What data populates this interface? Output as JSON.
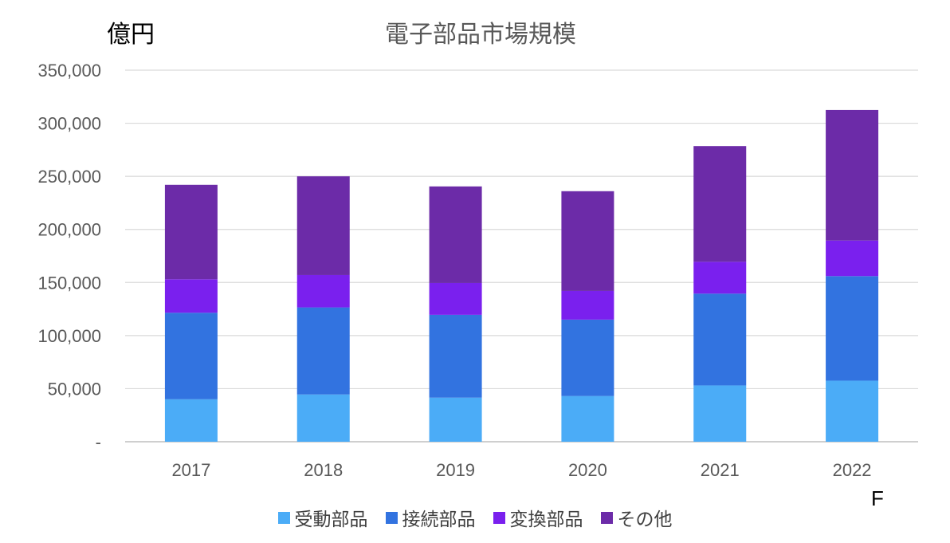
{
  "unit_label": "億円",
  "forecast_mark": "F",
  "chart_data": {
    "type": "bar",
    "stacked": true,
    "title": "電子部品市場規模",
    "xlabel": "",
    "ylabel": "億円",
    "ylim": [
      0,
      350000
    ],
    "yticks": [
      0,
      50000,
      100000,
      150000,
      200000,
      250000,
      300000,
      350000
    ],
    "ytick_labels": [
      "-",
      "50,000",
      "100,000",
      "150,000",
      "200,000",
      "250,000",
      "300,000",
      "350,000"
    ],
    "categories": [
      "2017",
      "2018",
      "2019",
      "2020",
      "2021",
      "2022"
    ],
    "grid": true,
    "legend_position": "bottom",
    "series": [
      {
        "name": "受動部品",
        "color": "#4BACF7",
        "values": [
          40000,
          44500,
          41500,
          43000,
          53000,
          57500
        ]
      },
      {
        "name": "接続部品",
        "color": "#3273E0",
        "values": [
          81500,
          82000,
          78000,
          72000,
          86500,
          98500
        ]
      },
      {
        "name": "変換部品",
        "color": "#7A20EE",
        "values": [
          31500,
          30500,
          30000,
          27000,
          30000,
          33500
        ]
      },
      {
        "name": "その他",
        "color": "#6C2BA8",
        "values": [
          89000,
          93000,
          91000,
          94000,
          109000,
          123000
        ]
      }
    ]
  }
}
